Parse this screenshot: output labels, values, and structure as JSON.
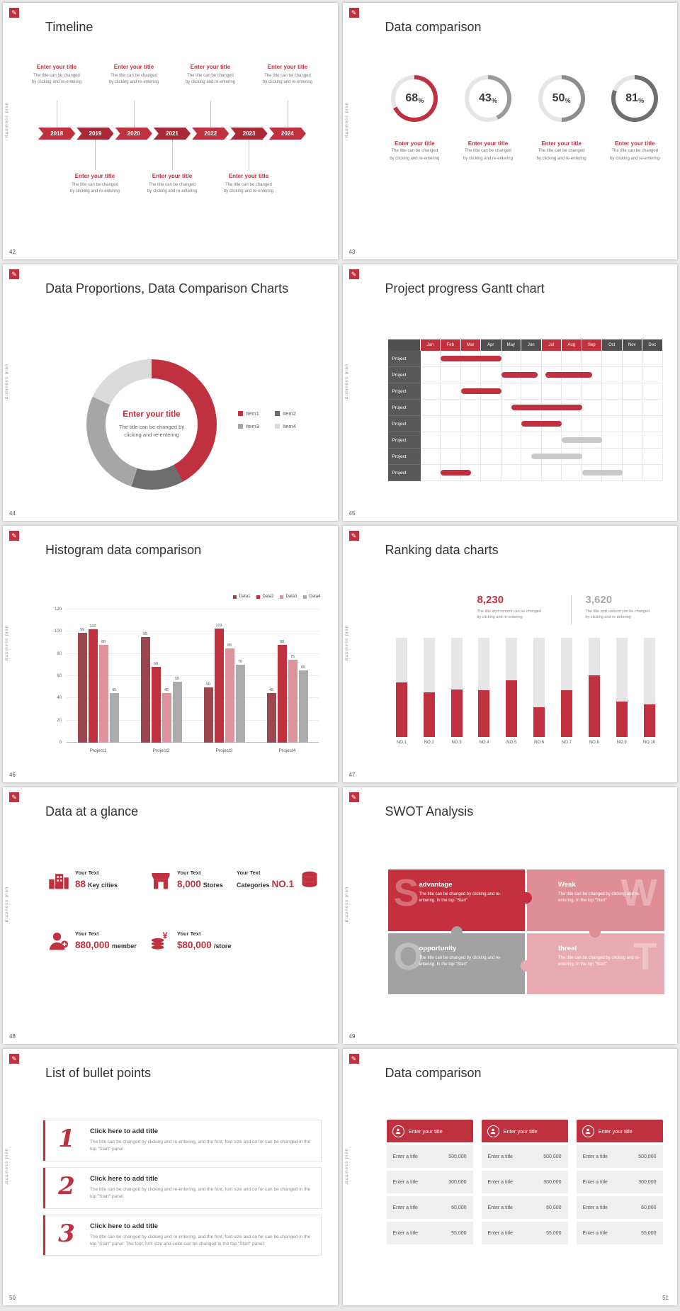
{
  "accent_color": "#c0313f",
  "page_bg": "#e9e9e9",
  "sidebar_label": "Business plan",
  "logo_glyph": "✎",
  "slides": {
    "s42": {
      "number": "42",
      "title": "Timeline",
      "entry_title": "Enter your title",
      "entry_line1": "The title can be changed",
      "entry_line2": "by clicking and re-entering",
      "years": [
        "2018",
        "2019",
        "2020",
        "2021",
        "2022",
        "2023",
        "2024"
      ]
    },
    "s43": {
      "number": "43",
      "title": "Data comparison",
      "unit": "%",
      "entry_title": "Enter your title",
      "entry_line1": "The title can be changed",
      "entry_line2": "by clicking and re-entering",
      "chart_data": {
        "type": "donut-set",
        "values": [
          68,
          43,
          50,
          81
        ],
        "ring_colors": [
          "#c0313f",
          "#9b9b9b",
          "#8d8d8d",
          "#6f6f6f"
        ],
        "track_color": "#e5e5e5"
      }
    },
    "s44": {
      "number": "44",
      "title": "Data Proportions, Data Comparison Charts",
      "center_title": "Enter your title",
      "center_line1": "The title can be changed by",
      "center_line2": "clicking and re-entering",
      "chart_data": {
        "type": "donut",
        "segments": [
          {
            "label": "Item1",
            "value": 42,
            "color": "#c0313f"
          },
          {
            "label": "Item2",
            "value": 13,
            "color": "#6e6e6e"
          },
          {
            "label": "Item3",
            "value": 27,
            "color": "#a6a6a6"
          },
          {
            "label": "Item4",
            "value": 18,
            "color": "#dadada"
          }
        ]
      }
    },
    "s45": {
      "number": "45",
      "title": "Project progress Gantt chart",
      "chart_data": {
        "type": "gantt",
        "months": [
          "Jan",
          "Feb",
          "Mar",
          "Apr",
          "May",
          "Jun",
          "Jul",
          "Aug",
          "Sep",
          "Oct",
          "Nov",
          "Dec"
        ],
        "red_months": [
          "Jan",
          "Feb",
          "Mar",
          "Jul",
          "Aug",
          "Sep"
        ],
        "row_label": "Project",
        "bar_colors": {
          "red": "#c0313f",
          "gray": "#c9c9c9"
        },
        "rows": [
          {
            "bars": [
              {
                "start": 2,
                "end": 5,
                "color": "red"
              }
            ]
          },
          {
            "bars": [
              {
                "start": 5,
                "end": 6.8,
                "color": "red"
              },
              {
                "start": 7.2,
                "end": 9.5,
                "color": "red"
              }
            ]
          },
          {
            "bars": [
              {
                "start": 3,
                "end": 5,
                "color": "red"
              }
            ]
          },
          {
            "bars": [
              {
                "start": 5.5,
                "end": 9,
                "color": "red"
              }
            ]
          },
          {
            "bars": [
              {
                "start": 6,
                "end": 8,
                "color": "red"
              }
            ]
          },
          {
            "bars": [
              {
                "start": 8,
                "end": 10,
                "color": "gray"
              }
            ]
          },
          {
            "bars": [
              {
                "start": 6.5,
                "end": 9,
                "color": "gray"
              }
            ]
          },
          {
            "bars": [
              {
                "start": 2,
                "end": 3.5,
                "color": "red"
              },
              {
                "start": 9,
                "end": 11,
                "color": "gray"
              }
            ]
          }
        ]
      }
    },
    "s46": {
      "number": "46",
      "title": "Histogram data comparison",
      "chart_data": {
        "type": "bar",
        "categories": [
          "Project1",
          "Project2",
          "Project3",
          "Project4"
        ],
        "series": [
          {
            "name": "Data1",
            "color": "#9c464e",
            "values": [
              99,
              95,
              50,
              45
            ]
          },
          {
            "name": "Data2",
            "color": "#c0313f",
            "values": [
              102,
              68,
              103,
              88
            ]
          },
          {
            "name": "Data3",
            "color": "#dd939b",
            "values": [
              88,
              45,
              85,
              75
            ]
          },
          {
            "name": "Data4",
            "color": "#ababab",
            "values": [
              45,
              55,
              70,
              65
            ]
          }
        ],
        "ylim": [
          0,
          120
        ],
        "yticks": [
          0,
          20,
          40,
          60,
          80,
          100,
          120
        ]
      }
    },
    "s47": {
      "number": "47",
      "title": "Ranking data charts",
      "stat1_value": "8,230",
      "stat2_value": "3,620",
      "stat_line1": "The title and content can be changed",
      "stat_line2": "by clicking and re-entering",
      "chart_data": {
        "type": "bar",
        "categories": [
          "NO.1",
          "NO.2",
          "NO.3",
          "NO.4",
          "NO.5",
          "NO.6",
          "NO.7",
          "NO.8",
          "NO.9",
          "NO.10"
        ],
        "values": [
          55,
          45,
          48,
          47,
          57,
          30,
          47,
          62,
          36,
          33
        ],
        "max": 100,
        "bar_color": "#c0313f",
        "track_color": "#e6e6e6"
      }
    },
    "s48": {
      "number": "48",
      "title": "Data at a glance",
      "items": [
        {
          "label": "Your Text",
          "value": "88",
          "unit": "Key cities"
        },
        {
          "label": "Your Text",
          "value": "8,000",
          "unit": "Stores"
        },
        {
          "label": "Your Text",
          "value": "NO.1",
          "unit": "Categories"
        },
        {
          "label": "Your Text",
          "value": "880,000",
          "unit": "member"
        },
        {
          "label": "Your Text",
          "value": "$80,000",
          "unit": "/store"
        }
      ]
    },
    "s49": {
      "number": "49",
      "title": "SWOT Analysis",
      "quadrants": [
        {
          "letter": "S",
          "title": "advantage",
          "body": "The title can be changed by clicking and re-entering. In the top \"Start\"",
          "color": "#c5303e"
        },
        {
          "letter": "W",
          "title": "Weak",
          "body": "The title can be changed by clicking and re-entering. In the top \"Start\"",
          "color": "#df8e96"
        },
        {
          "letter": "O",
          "title": "opportunity",
          "body": "The title can be changed by clicking and re-entering. In the top \"Start\"",
          "color": "#a2a2a2"
        },
        {
          "letter": "T",
          "title": "threat",
          "body": "The title can be changed by clicking and re-entering. In the top \"Start\"",
          "color": "#e8abb1"
        }
      ]
    },
    "s50": {
      "number": "50",
      "title": "List of bullet points",
      "items": [
        {
          "num": "1",
          "title": "Click here to add title",
          "body": "The title can be changed by clicking and re-entering, and the font, font size and co for can be changed in the top \"Start\" panel"
        },
        {
          "num": "2",
          "title": "Click here to add title",
          "body": "The title can be changed by clicking and re-entering, and the font, font size and co for can be changed in the top \"Start\" panel"
        },
        {
          "num": "3",
          "title": "Click here to add title",
          "body": "The title can be changed by clicking and re-entering, and the font, font size and co for can be changed in the top \"Start\" panel. The font, font size and color can be changed in the top \"Start\" panel."
        }
      ]
    },
    "s51": {
      "number": "51",
      "title": "Data comparison",
      "tables": [
        {
          "header": "Enter your title",
          "rows": [
            {
              "label": "Enter a title",
              "value": "500,000"
            },
            {
              "label": "Enter a title",
              "value": "300,000"
            },
            {
              "label": "Enter a title",
              "value": "60,000"
            },
            {
              "label": "Enter a title",
              "value": "55,000"
            }
          ]
        },
        {
          "header": "Enter your title",
          "rows": [
            {
              "label": "Enter a title",
              "value": "500,000"
            },
            {
              "label": "Enter a title",
              "value": "300,000"
            },
            {
              "label": "Enter a title",
              "value": "60,000"
            },
            {
              "label": "Enter a title",
              "value": "55,000"
            }
          ]
        },
        {
          "header": "Enter your title",
          "rows": [
            {
              "label": "Enter a title",
              "value": "500,000"
            },
            {
              "label": "Enter a title",
              "value": "300,000"
            },
            {
              "label": "Enter a title",
              "value": "60,000"
            },
            {
              "label": "Enter a title",
              "value": "55,000"
            }
          ]
        }
      ]
    }
  }
}
